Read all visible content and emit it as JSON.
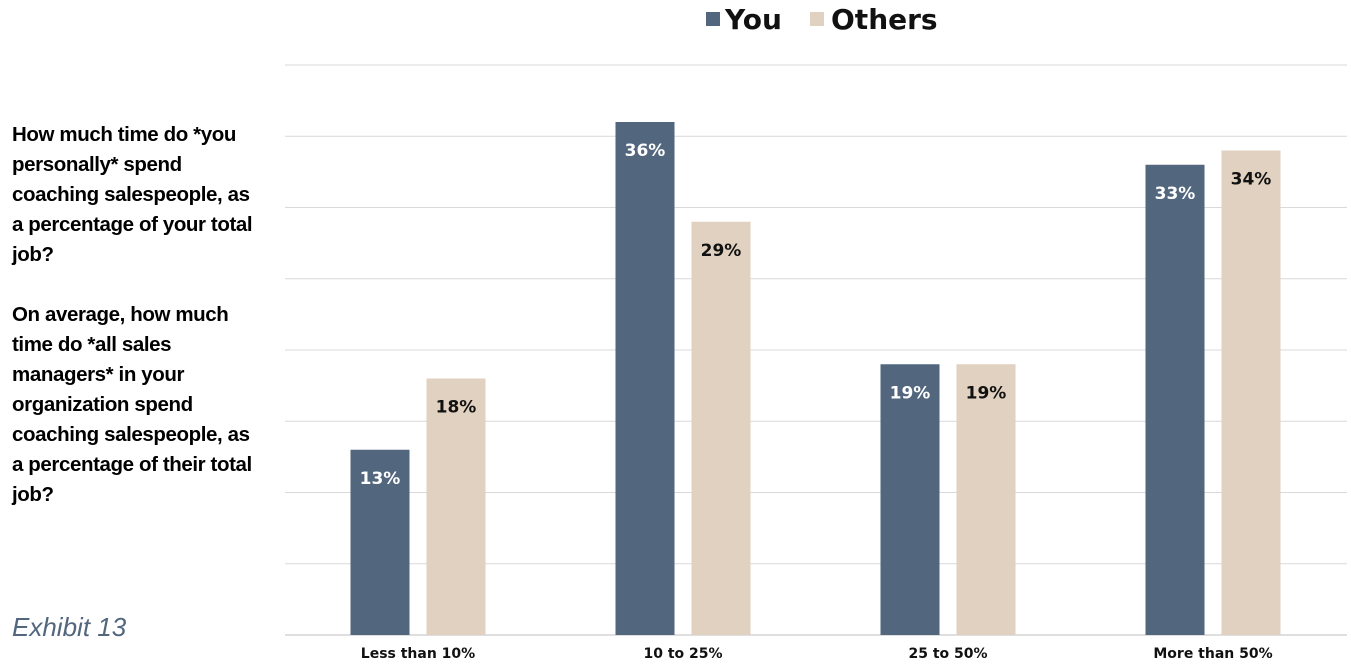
{
  "questions": {
    "q1": "How much time do *you personally* spend coaching salespeople, as a percentage of your total job?",
    "q2": "On average, how much time do *all sales managers* in your organization spend coaching salespeople, as a percentage of their total job?"
  },
  "exhibit_label": "Exhibit 13",
  "colors": {
    "you": "#52667E",
    "others": "#E0D1C0",
    "grid": "#D9D9D9"
  },
  "chart_data": {
    "type": "bar",
    "categories": [
      "Less than 10%",
      "10 to 25%",
      "25 to 50%",
      "More than 50%"
    ],
    "series": [
      {
        "name": "You",
        "values": [
          13,
          36,
          19,
          33
        ],
        "labels": [
          "13%",
          "36%",
          "19%",
          "33%"
        ]
      },
      {
        "name": "Others",
        "values": [
          18,
          29,
          19,
          34
        ],
        "labels": [
          "18%",
          "29%",
          "19%",
          "34%"
        ]
      }
    ],
    "ylim": [
      0,
      40
    ],
    "grid": true,
    "legend": "top-center",
    "title": "",
    "xlabel": "",
    "ylabel": ""
  }
}
